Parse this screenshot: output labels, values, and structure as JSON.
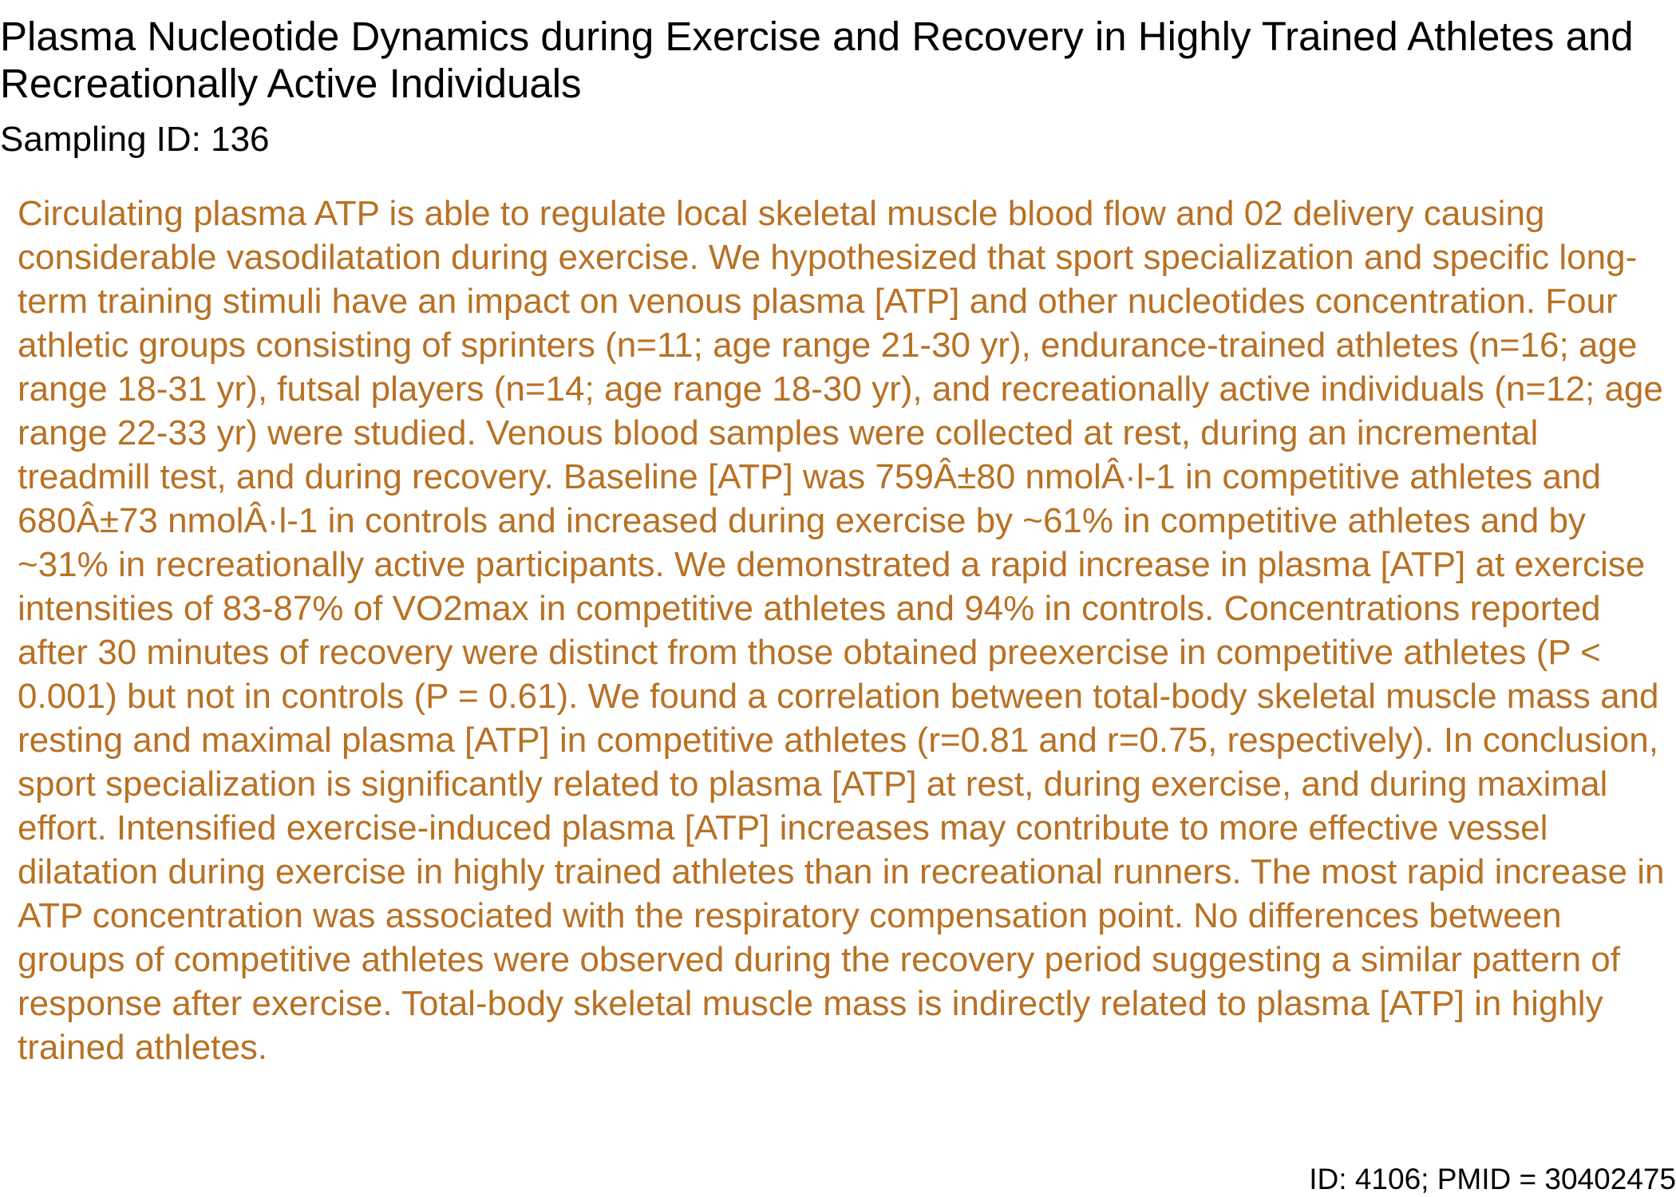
{
  "document": {
    "title": "Plasma Nucleotide Dynamics during Exercise and Recovery in Highly Trained Athletes and Recreationally Active Individuals",
    "sampling_id": "Sampling ID: 136",
    "abstract": "Circulating plasma ATP is able to regulate local skeletal muscle blood flow and 02 delivery causing considerable vasodilatation during exercise. We hypothesized that sport specialization and specific long-term training stimuli have an impact on venous plasma [ATP] and other nucleotides concentration. Four athletic groups consisting of sprinters (n=11; age range 21-30 yr), endurance-trained athletes (n=16; age range 18-31 yr), futsal players (n=14; age range 18-30 yr), and recreationally active individuals (n=12; age range 22-33 yr) were studied. Venous blood samples were collected at rest, during an incremental treadmill test, and during recovery. Baseline [ATP] was 759Â±80 nmolÂ·l-1 in competitive athletes and 680Â±73 nmolÂ·l-1 in controls and increased during exercise by ~61% in competitive athletes and by ~31% in recreationally active participants. We demonstrated a rapid increase in plasma [ATP] at exercise intensities of 83-87% of VO2max in competitive athletes and 94% in controls. Concentrations reported after 30 minutes of recovery were distinct from those obtained preexercise in competitive athletes (P < 0.001) but not in controls (P = 0.61). We found a correlation between total-body skeletal muscle mass and resting and maximal plasma [ATP] in competitive athletes (r=0.81 and r=0.75, respectively). In conclusion, sport specialization is significantly related to plasma [ATP] at rest, during exercise, and during maximal effort. Intensified exercise-induced plasma [ATP] increases may contribute to more effective vessel dilatation during exercise in highly trained athletes than in recreational runners. The most rapid increase in ATP concentration was associated with the respiratory compensation point. No differences between groups of competitive athletes were observed during the recovery period suggesting a similar pattern of response after exercise. Total-body skeletal muscle mass is indirectly related to plasma [ATP] in highly trained athletes.",
    "footer_id": "ID: 4106; PMID = 30402475"
  },
  "colors": {
    "title_text": "#000000",
    "abstract_text": "#b87124",
    "background": "#ffffff"
  }
}
